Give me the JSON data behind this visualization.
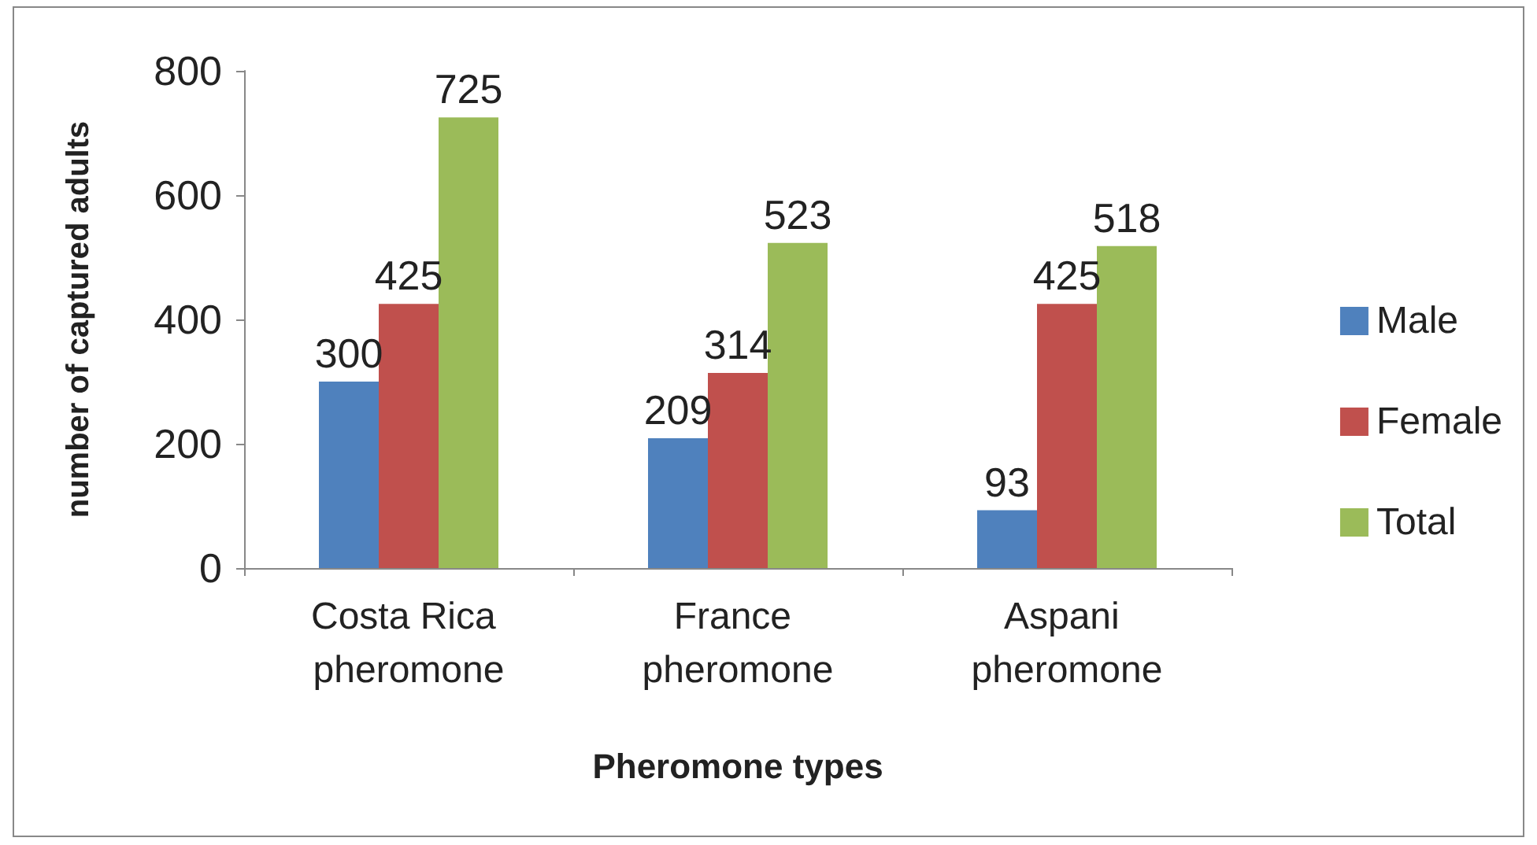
{
  "chart_data": {
    "type": "bar",
    "xlabel": "Pheromone types",
    "ylabel": "number of captured adults",
    "categories": [
      "Costa Rica pheromone",
      "France pheromone",
      "Aspani pheromone"
    ],
    "series": [
      {
        "name": "Male",
        "color": "#4f81bd",
        "values": [
          300,
          209,
          93
        ]
      },
      {
        "name": "Female",
        "color": "#c0504d",
        "values": [
          425,
          314,
          425
        ]
      },
      {
        "name": "Total",
        "color": "#9bbb59",
        "values": [
          725,
          523,
          518
        ]
      }
    ],
    "ylim": [
      0,
      800
    ],
    "yticks": [
      0,
      200,
      400,
      600,
      800
    ],
    "grid": false,
    "legend": "right",
    "data_labels": true
  }
}
